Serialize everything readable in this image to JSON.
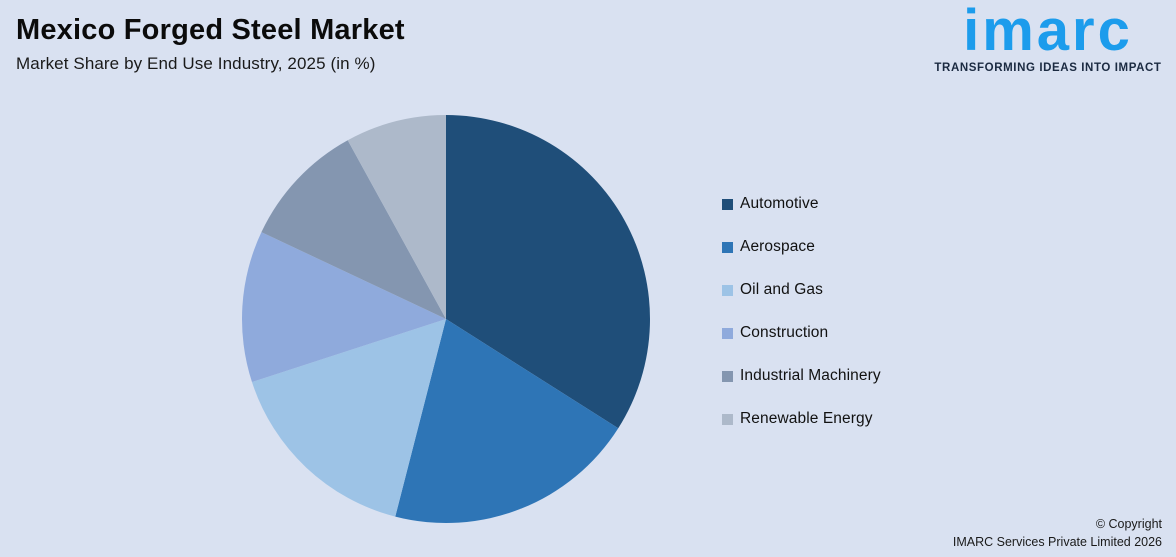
{
  "canvas": {
    "background": "#D9E1F1"
  },
  "header": {
    "title": "Mexico Forged Steel Market",
    "subtitle": "Market Share by End Use Industry, 2025 (in %)"
  },
  "logo": {
    "wordmark": "imarc",
    "tagline": "TRANSFORMING IDEAS INTO IMPACT",
    "brand_color": "#1C9CEC",
    "tagline_color": "#1B2A41"
  },
  "chart_data": {
    "type": "pie",
    "title": "Mexico Forged Steel Market",
    "subtitle": "Market Share by End Use Industry, 2025 (in %)",
    "unit": "%",
    "direction": "clockwise",
    "start_angle_deg": 0,
    "legend_position": "right",
    "data_labels_shown": false,
    "categories": [
      "Automotive",
      "Aerospace",
      "Oil and Gas",
      "Construction",
      "Industrial Machinery",
      "Renewable Energy"
    ],
    "values": [
      34,
      20,
      16,
      12,
      10,
      8
    ],
    "colors": [
      "#1F4E79",
      "#2E75B6",
      "#9DC3E6",
      "#8FAADC",
      "#8496B0",
      "#ADB9CA"
    ]
  },
  "footer": {
    "copyright_line1": "© Copyright",
    "copyright_line2": "IMARC Services Private Limited 2026"
  }
}
